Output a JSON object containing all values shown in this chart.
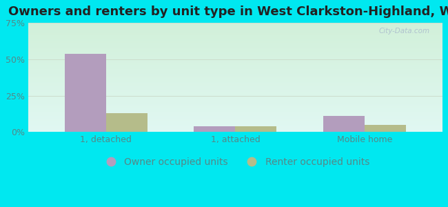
{
  "title": "Owners and renters by unit type in West Clarkston-Highland, WA",
  "categories": [
    "1, detached",
    "1, attached",
    "Mobile home"
  ],
  "owner_values": [
    54,
    4,
    11
  ],
  "renter_values": [
    13,
    4,
    5
  ],
  "owner_color": "#b39dbd",
  "renter_color": "#b5bc8a",
  "ylim": [
    0,
    75
  ],
  "yticks": [
    0,
    25,
    50,
    75
  ],
  "ytick_labels": [
    "0%",
    "25%",
    "50%",
    "75%"
  ],
  "outer_bg": "#00e8f0",
  "bar_width": 0.32,
  "title_fontsize": 13,
  "tick_fontsize": 9,
  "legend_fontsize": 10,
  "watermark": "City-Data.com",
  "grid_color": "#ccddcc",
  "tick_color": "#558888"
}
